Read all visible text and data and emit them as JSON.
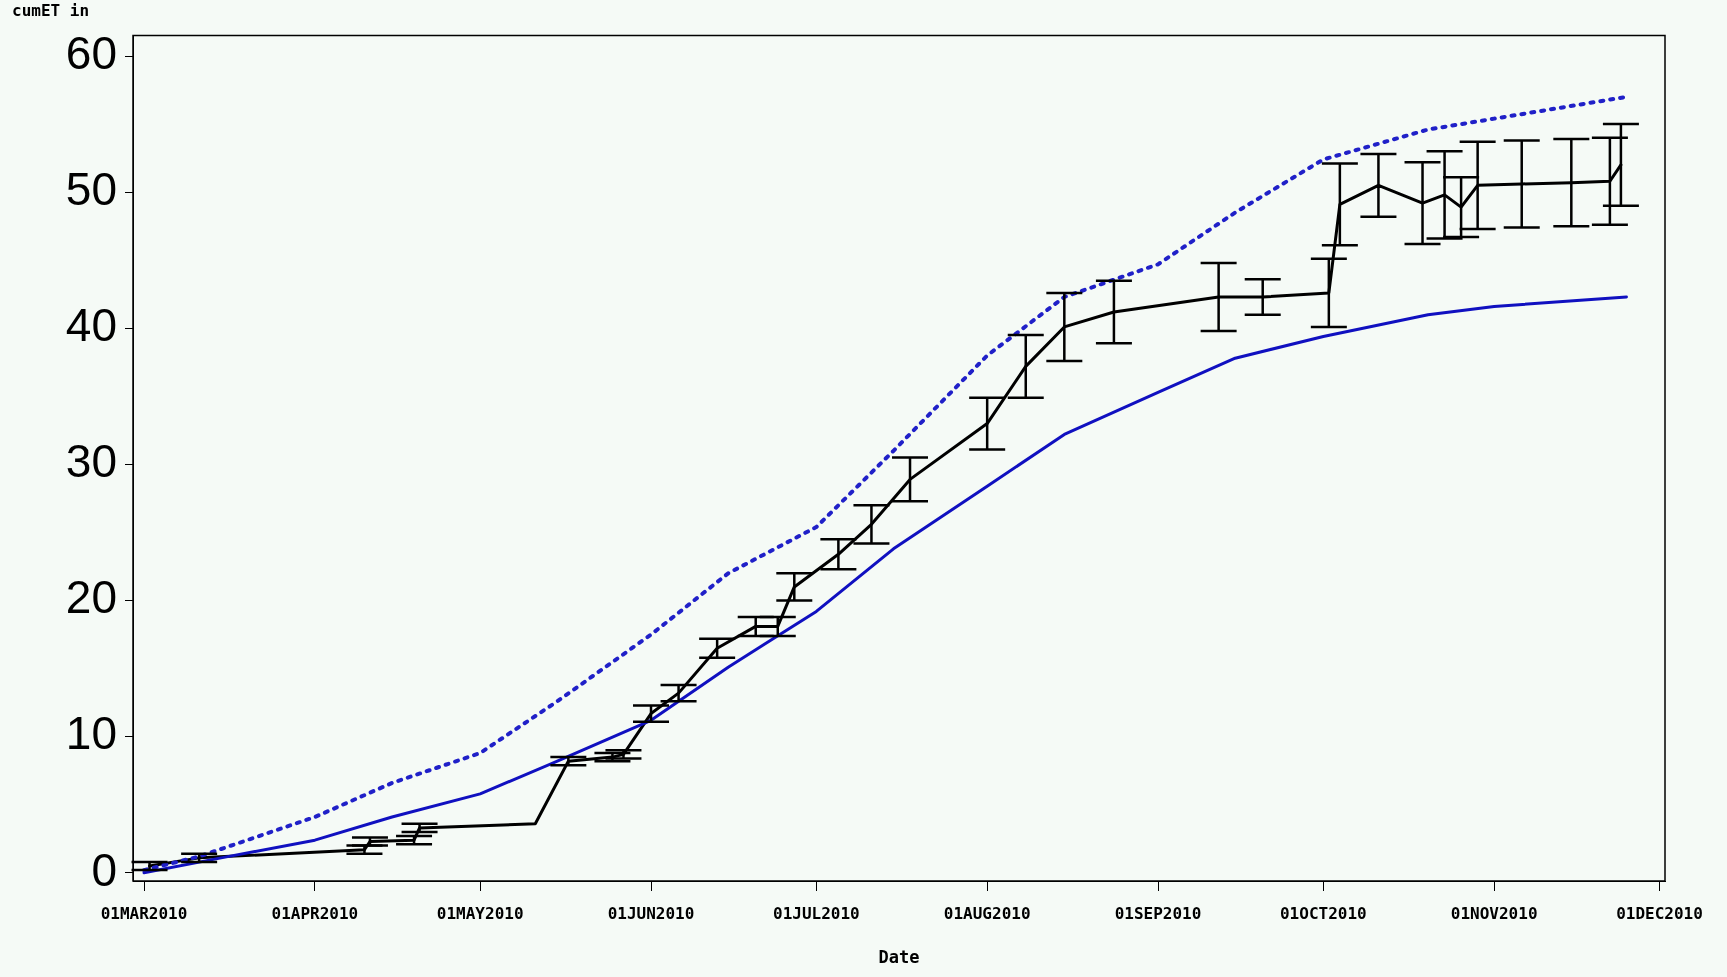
{
  "chart_data": {
    "type": "line",
    "xlabel": "Date",
    "ylabel": "cumET in",
    "xlim": [
      "2010-02-27",
      "2010-12-02"
    ],
    "xticks": [
      {
        "value": "2010-03-01",
        "label": "01MAR2010"
      },
      {
        "value": "2010-04-01",
        "label": "01APR2010"
      },
      {
        "value": "2010-05-01",
        "label": "01MAY2010"
      },
      {
        "value": "2010-06-01",
        "label": "01JUN2010"
      },
      {
        "value": "2010-07-01",
        "label": "01JUL2010"
      },
      {
        "value": "2010-08-01",
        "label": "01AUG2010"
      },
      {
        "value": "2010-09-01",
        "label": "01SEP2010"
      },
      {
        "value": "2010-10-01",
        "label": "01OCT2010"
      },
      {
        "value": "2010-11-01",
        "label": "01NOV2010"
      },
      {
        "value": "2010-12-01",
        "label": "01DEC2010"
      }
    ],
    "ylim": [
      -0.6,
      61.5
    ],
    "yticks": [
      0,
      10,
      20,
      30,
      40,
      50,
      60
    ],
    "grid": false,
    "legend": false,
    "marker": "none",
    "series": [
      {
        "color": "#2020c8",
        "line_style": "dotted",
        "x": [
          "2010-03-01",
          "2010-03-11",
          "2010-04-01",
          "2010-04-15",
          "2010-05-01",
          "2010-05-15",
          "2010-06-01",
          "2010-06-15",
          "2010-07-01",
          "2010-07-15",
          "2010-08-01",
          "2010-08-15",
          "2010-09-01",
          "2010-09-15",
          "2010-10-01",
          "2010-10-20",
          "2010-11-01",
          "2010-11-25"
        ],
        "values": [
          0.2,
          1.2,
          4.1,
          6.6,
          8.8,
          12.6,
          17.5,
          22.0,
          25.4,
          31.0,
          38.0,
          42.3,
          44.7,
          48.5,
          52.4,
          54.6,
          55.4,
          57.0
        ]
      },
      {
        "color": "#1010c0",
        "line_style": "solid",
        "x": [
          "2010-03-01",
          "2010-03-15",
          "2010-04-01",
          "2010-04-15",
          "2010-05-01",
          "2010-05-15",
          "2010-06-01",
          "2010-06-15",
          "2010-07-01",
          "2010-07-15",
          "2010-08-01",
          "2010-08-15",
          "2010-09-01",
          "2010-09-15",
          "2010-10-01",
          "2010-10-20",
          "2010-11-01",
          "2010-11-25"
        ],
        "values": [
          0.0,
          1.1,
          2.4,
          4.1,
          5.8,
          8.2,
          11.2,
          15.1,
          19.2,
          23.8,
          28.4,
          32.2,
          35.3,
          37.8,
          39.4,
          41.0,
          41.6,
          42.3
        ]
      },
      {
        "color": "#000000",
        "line_style": "solid",
        "x": [
          "2010-03-02",
          "2010-03-11",
          "2010-04-10",
          "2010-04-11",
          "2010-04-19",
          "2010-04-20",
          "2010-05-11",
          "2010-05-17",
          "2010-05-25",
          "2010-05-27",
          "2010-06-01",
          "2010-06-06",
          "2010-06-13",
          "2010-06-20",
          "2010-06-24",
          "2010-06-27",
          "2010-07-05",
          "2010-07-11",
          "2010-07-18",
          "2010-08-01",
          "2010-08-08",
          "2010-08-15",
          "2010-08-24",
          "2010-09-12",
          "2010-09-20",
          "2010-10-02",
          "2010-10-04",
          "2010-10-11",
          "2010-10-19",
          "2010-10-23",
          "2010-10-26",
          "2010-10-29",
          "2010-11-06",
          "2010-11-15",
          "2010-11-22",
          "2010-11-24"
        ],
        "values": [
          0.5,
          1.1,
          1.7,
          2.3,
          2.4,
          3.3,
          3.6,
          8.2,
          8.5,
          8.7,
          11.7,
          13.2,
          16.5,
          18.1,
          18.1,
          21.0,
          23.4,
          25.6,
          28.9,
          33.0,
          37.2,
          40.1,
          41.2,
          42.3,
          42.3,
          42.6,
          49.1,
          50.5,
          49.2,
          49.8,
          48.9,
          50.5,
          50.6,
          50.7,
          50.8,
          52.0
        ],
        "errors": [
          0.3,
          0.3,
          0.3,
          0.3,
          0.3,
          0.3,
          null,
          0.3,
          0.3,
          0.3,
          0.6,
          0.6,
          0.7,
          0.7,
          0.7,
          1.0,
          1.1,
          1.4,
          1.6,
          1.9,
          2.3,
          2.5,
          2.3,
          2.5,
          1.3,
          2.5,
          3.0,
          2.3,
          3.0,
          3.2,
          2.2,
          3.2,
          3.2,
          3.2,
          3.2,
          3.0
        ]
      }
    ]
  }
}
